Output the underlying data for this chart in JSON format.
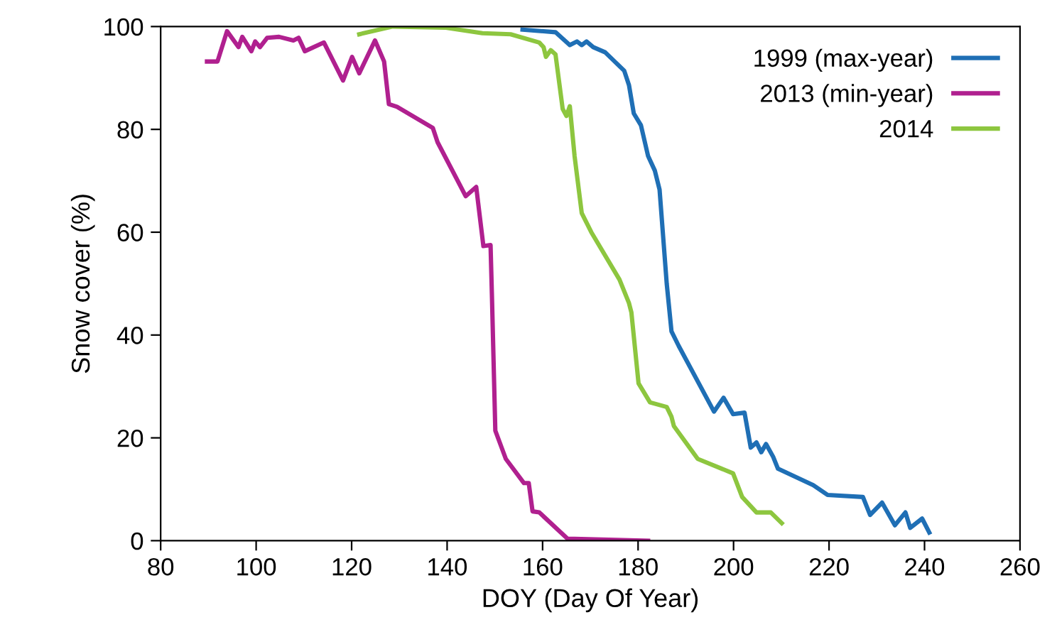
{
  "chart_data": {
    "type": "line",
    "xlabel": "DOY (Day Of Year)",
    "ylabel": "Snow cover (%)",
    "xlim": [
      80,
      260
    ],
    "xticks": [
      80,
      100,
      120,
      140,
      160,
      180,
      200,
      220,
      240,
      260
    ],
    "ylim": [
      0,
      100
    ],
    "yticks": [
      0,
      20,
      40,
      60,
      80,
      100
    ],
    "grid": false,
    "legend": "top right",
    "marker": "none",
    "line_style": "solid",
    "series": [
      {
        "name": "1999 (max-year)",
        "color": "#1f6fb5",
        "x": [
          155.8,
          162.7,
          165.7,
          167.2,
          168.2,
          169.2,
          170.6,
          173.1,
          177.1,
          178.1,
          179.1,
          180.6,
          182.1,
          183.5,
          184.5,
          186,
          187,
          188.5,
          195.9,
          197.9,
          199.9,
          202.3,
          203.6,
          204.8,
          205.8,
          206.8,
          208.3,
          209.3,
          216.7,
          219.7,
          227.1,
          228.6,
          231.1,
          233.8,
          236,
          237,
          239.5,
          241
        ],
        "values": [
          99.4,
          98.9,
          96.4,
          97.1,
          96.4,
          97.1,
          96,
          95,
          91.4,
          88.6,
          83.1,
          80.8,
          74.8,
          72,
          68.3,
          50,
          40.7,
          37.9,
          25.1,
          27.8,
          24.6,
          24.9,
          18.1,
          19.1,
          17.2,
          18.8,
          16.3,
          14,
          10.8,
          8.9,
          8.5,
          5,
          7.4,
          3,
          5.5,
          2.5,
          4.3,
          1.6
        ]
      },
      {
        "name": "2013 (min-year)",
        "color": "#b0208f",
        "x": [
          89.7,
          91.9,
          93.9,
          96.3,
          97.1,
          99,
          99.8,
          100.8,
          102.3,
          104.8,
          107.8,
          108.9,
          110.2,
          114.2,
          118.2,
          120.1,
          121.6,
          124.9,
          126.8,
          127.8,
          129.5,
          137,
          138,
          143.9,
          146.1,
          147.6,
          149.1,
          149.4,
          150.1,
          152.3,
          156.1,
          157.1,
          157.9,
          159.3,
          165.2,
          182.1
        ],
        "values": [
          93.2,
          93.2,
          99.1,
          96,
          98,
          95.2,
          97.1,
          96,
          97.8,
          98,
          97.3,
          97.8,
          95.2,
          96.9,
          89.5,
          94.1,
          90.9,
          97.3,
          93.2,
          84.9,
          84.4,
          80.3,
          77.5,
          67,
          68.8,
          57.3,
          57.5,
          47.2,
          21.4,
          15.9,
          11.2,
          11.2,
          5.7,
          5.5,
          0.4,
          0
        ]
      },
      {
        "name": "2014",
        "color": "#8dc63f",
        "x": [
          121.6,
          128.6,
          139.5,
          147.4,
          153.3,
          159.3,
          160.2,
          160.7,
          161.7,
          162.7,
          164.2,
          165,
          165.7,
          166.7,
          168.2,
          170.2,
          176.1,
          178.1,
          178.6,
          180.1,
          182.5,
          186,
          187,
          187.5,
          192.5,
          199.9,
          201.8,
          204.8,
          207.8,
          210.1
        ],
        "values": [
          98.5,
          100,
          99.8,
          98.7,
          98.5,
          96.9,
          96,
          94.1,
          95.4,
          94.6,
          84,
          82.6,
          84.5,
          74.8,
          63.7,
          60,
          50.8,
          46.2,
          44.4,
          30.6,
          26.9,
          26,
          24.1,
          22.3,
          15.9,
          13.1,
          8.5,
          5.5,
          5.5,
          3.4
        ]
      }
    ]
  }
}
